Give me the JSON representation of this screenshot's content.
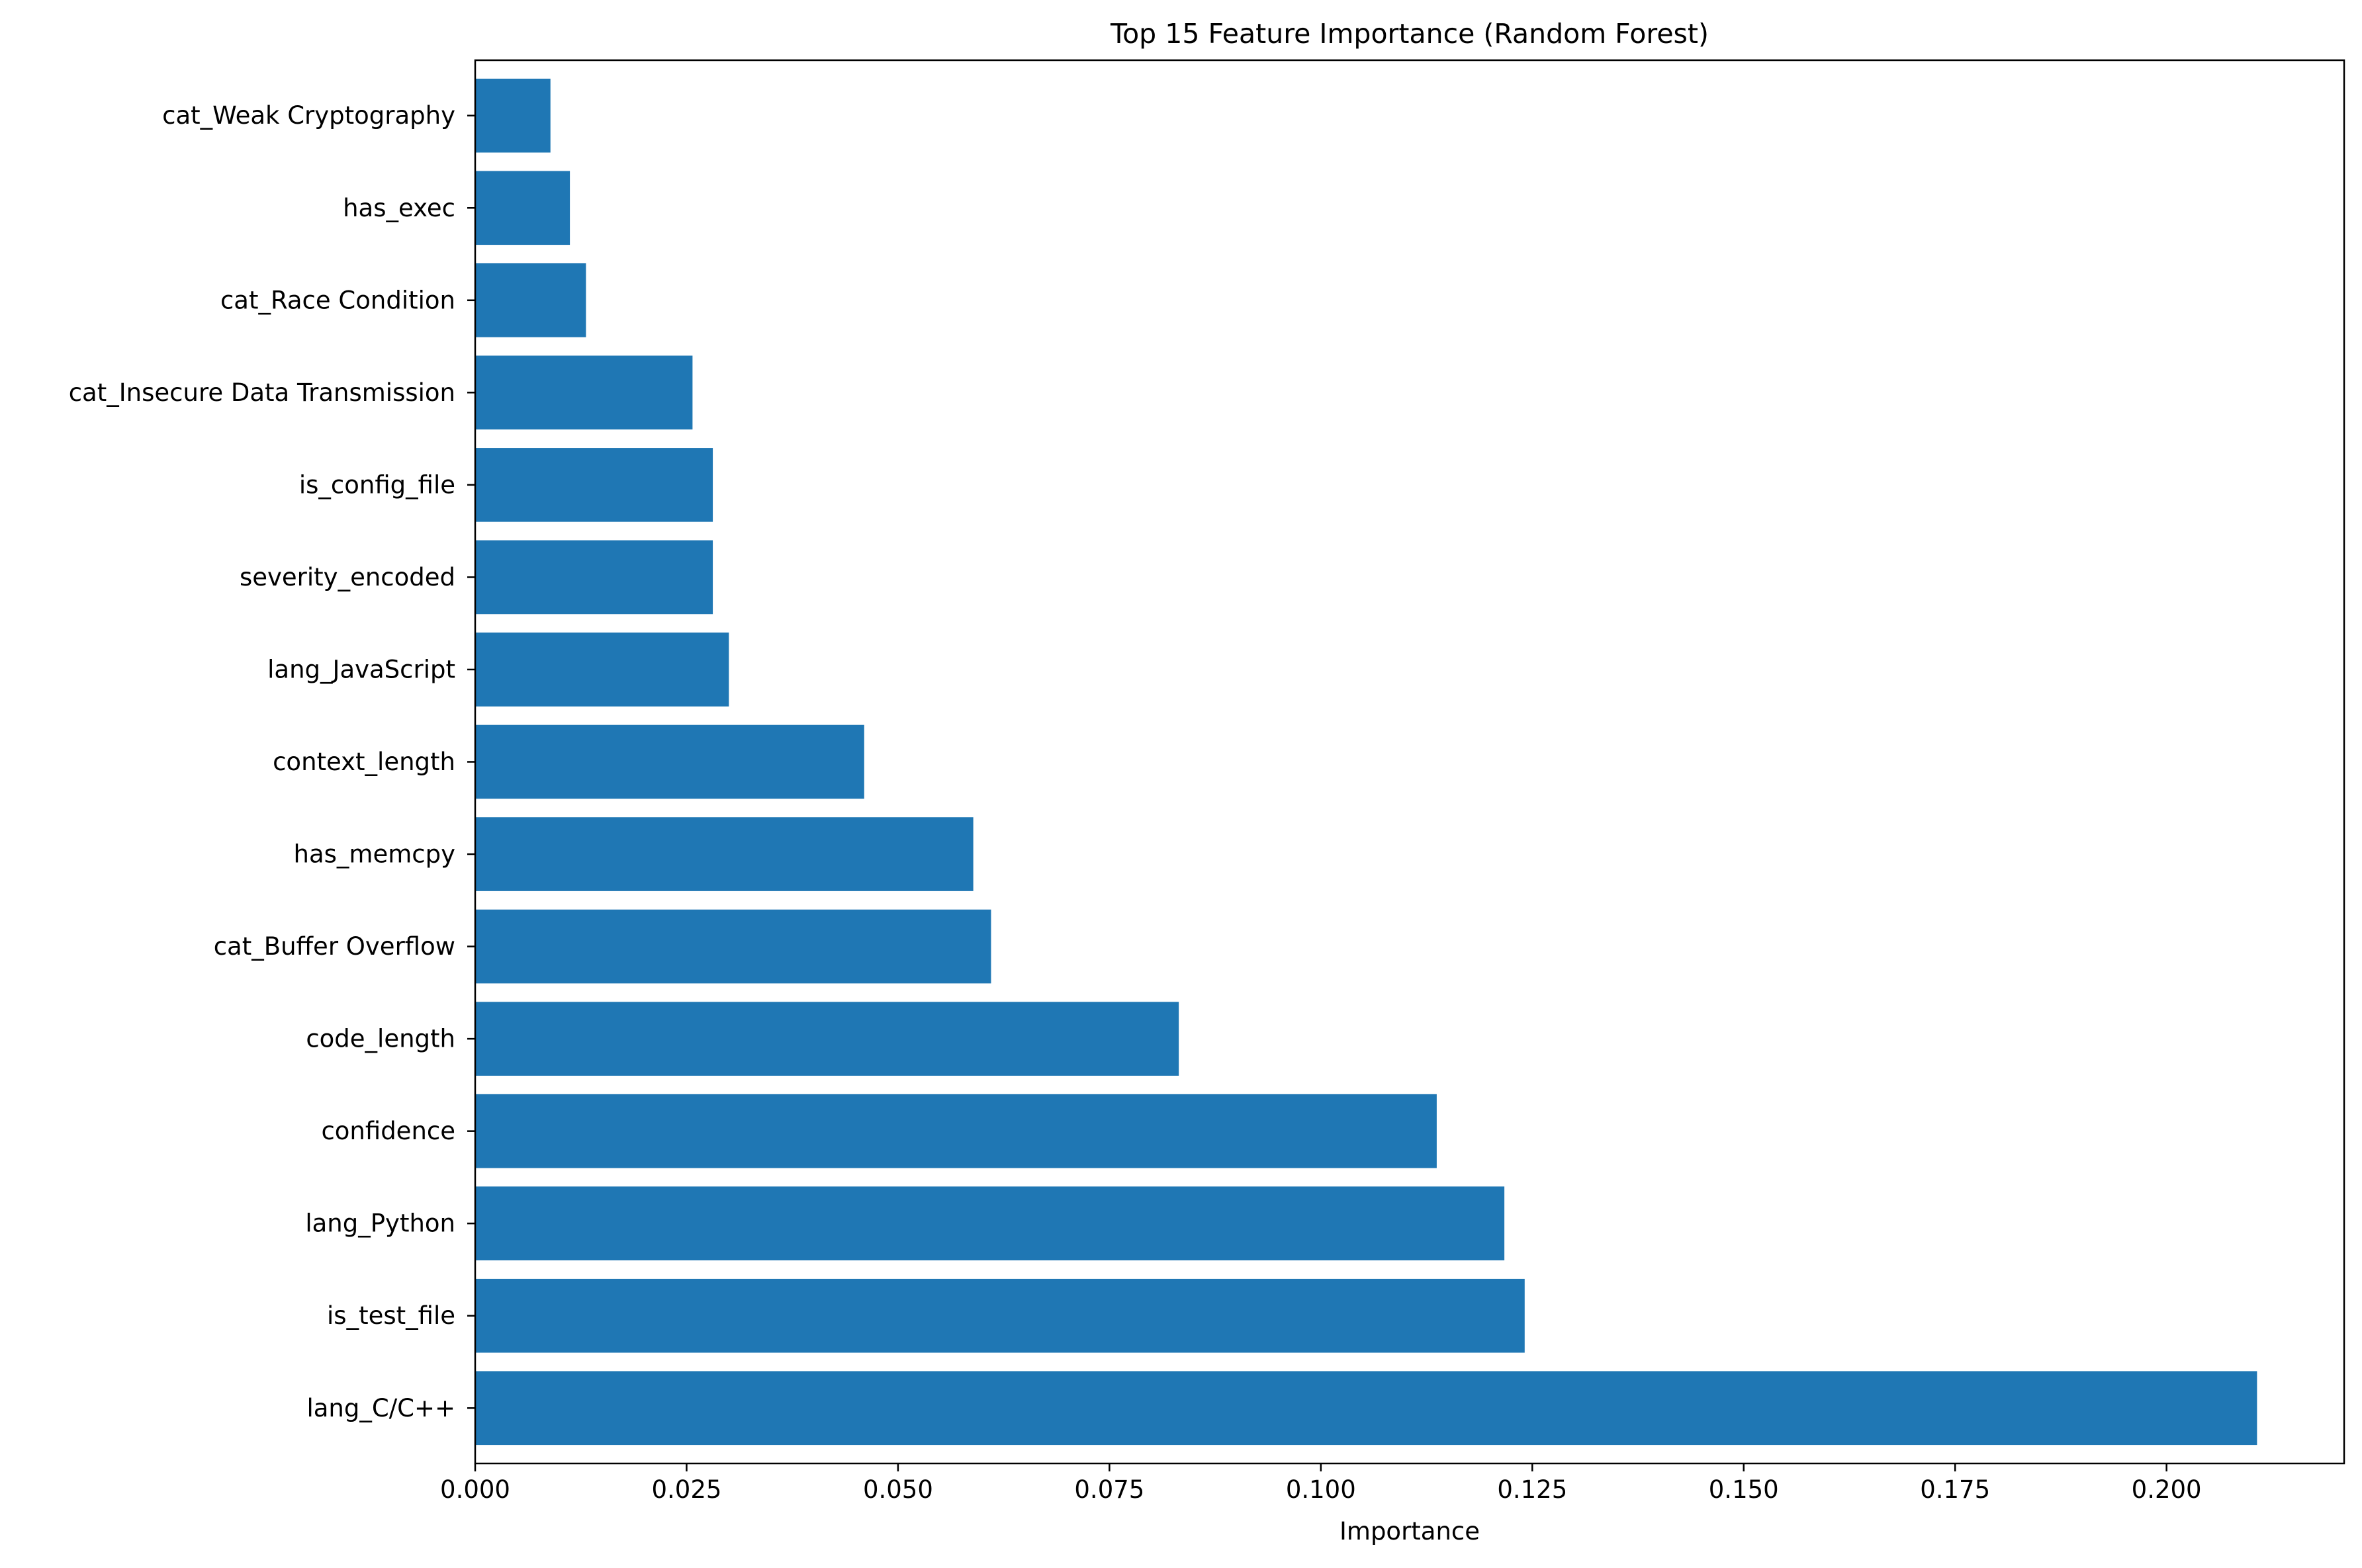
{
  "chart_data": {
    "type": "bar",
    "orientation": "horizontal",
    "title": "Top 15 Feature Importance (Random Forest)",
    "xlabel": "Importance",
    "ylabel": "",
    "xlim": [
      0.0,
      0.221
    ],
    "x_ticks": [
      "0.000",
      "0.025",
      "0.050",
      "0.075",
      "0.100",
      "0.125",
      "0.150",
      "0.175",
      "0.200"
    ],
    "categories": [
      "lang_C/C++",
      "is_test_file",
      "lang_Python",
      "confidence",
      "code_length",
      "cat_Buffer Overflow",
      "has_memcpy",
      "context_length",
      "lang_JavaScript",
      "severity_encoded",
      "is_config_file",
      "cat_Insecure Data Transmission",
      "cat_Race Condition",
      "has_exec",
      "cat_Weak Cryptography"
    ],
    "values": [
      0.2107,
      0.1241,
      0.1217,
      0.1137,
      0.0832,
      0.061,
      0.0589,
      0.046,
      0.03,
      0.0281,
      0.0281,
      0.0257,
      0.0131,
      0.0112,
      0.0089
    ],
    "bar_color": "#1f77b4",
    "grid": false,
    "legend": "none"
  }
}
